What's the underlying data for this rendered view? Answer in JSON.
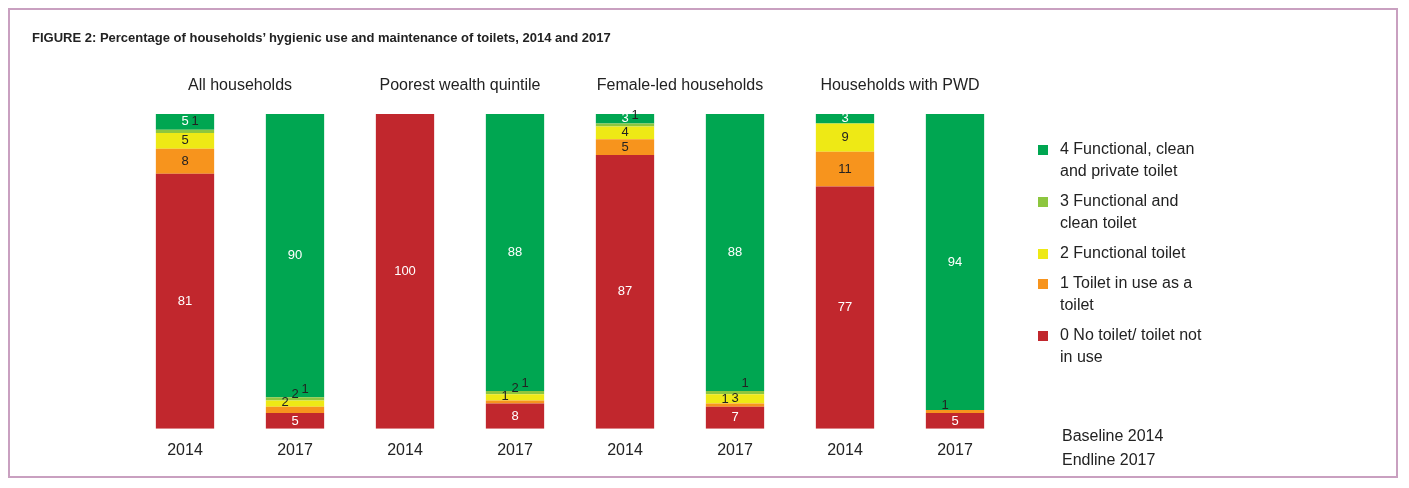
{
  "chart_data": [
    {
      "type": "bar",
      "title": "FIGURE 2: Percentage of households’ hygienic use and maintenance of toilets, 2014 and 2017",
      "subtitle": "All households",
      "categories": [
        "2014",
        "2017"
      ],
      "stacked": true,
      "ylim": [
        0,
        100
      ],
      "tick_labels": "x",
      "legend": false,
      "grid": false,
      "series": [
        {
          "color": "#c1272d",
          "values": [
            81,
            5
          ],
          "value_labels": [
            "81",
            "5"
          ]
        },
        {
          "color": "#f7941d",
          "values": [
            8,
            2
          ],
          "value_labels": [
            "8",
            "2"
          ]
        },
        {
          "color": "#eee915",
          "values": [
            5,
            2
          ],
          "value_labels": [
            "5",
            "2"
          ]
        },
        {
          "color": "#8dc63f",
          "values": [
            1,
            1
          ],
          "value_labels": [
            "1",
            "1"
          ]
        },
        {
          "color": "#00a651",
          "values": [
            5,
            90
          ],
          "value_labels": [
            "5",
            "90"
          ]
        }
      ]
    },
    {
      "type": "bar",
      "subtitle": "Poorest wealth quintile",
      "categories": [
        "2014",
        "2017"
      ],
      "stacked": true,
      "ylim": [
        0,
        100
      ],
      "tick_labels": "x",
      "legend": false,
      "grid": false,
      "series": [
        {
          "color": "#c1272d",
          "values": [
            100,
            8
          ],
          "value_labels": [
            "100",
            "8"
          ]
        },
        {
          "color": "#f7941d",
          "values": [
            0,
            1
          ],
          "value_labels": [
            null,
            "1"
          ]
        },
        {
          "color": "#eee915",
          "values": [
            0,
            2
          ],
          "value_labels": [
            null,
            "2"
          ]
        },
        {
          "color": "#8dc63f",
          "values": [
            0,
            1
          ],
          "value_labels": [
            null,
            "1"
          ]
        },
        {
          "color": "#00a651",
          "values": [
            0,
            88
          ],
          "value_labels": [
            null,
            "88"
          ]
        }
      ]
    },
    {
      "type": "bar",
      "subtitle": "Female-led households",
      "categories": [
        "2014",
        "2017"
      ],
      "stacked": true,
      "ylim": [
        0,
        100
      ],
      "tick_labels": "x",
      "legend": false,
      "grid": false,
      "series": [
        {
          "color": "#c1272d",
          "values": [
            87,
            7
          ],
          "value_labels": [
            "87",
            "7"
          ]
        },
        {
          "color": "#f7941d",
          "values": [
            5,
            1
          ],
          "value_labels": [
            "5",
            "1"
          ]
        },
        {
          "color": "#eee915",
          "values": [
            4,
            3
          ],
          "value_labels": [
            "4",
            "3"
          ]
        },
        {
          "color": "#8dc63f",
          "values": [
            1,
            1
          ],
          "value_labels": [
            "1",
            "1"
          ]
        },
        {
          "color": "#00a651",
          "values": [
            3,
            88
          ],
          "value_labels": [
            "3",
            "88"
          ]
        }
      ]
    },
    {
      "type": "bar",
      "subtitle": "Households with PWD",
      "categories": [
        "2014",
        "2017"
      ],
      "stacked": true,
      "ylim": [
        0,
        100
      ],
      "tick_labels": "x",
      "legend": "right",
      "grid": false,
      "annotations": [
        "Baseline 2014",
        "Endline 2017"
      ],
      "series": [
        {
          "name": "0 No toilet/ toilet not in use",
          "color": "#c1272d",
          "values": [
            77,
            5
          ],
          "value_labels": [
            "77",
            "5"
          ]
        },
        {
          "name": "1 Toilet in use as a toilet",
          "color": "#f7941d",
          "values": [
            11,
            1
          ],
          "value_labels": [
            "11",
            "1"
          ]
        },
        {
          "name": "2 Functional toilet",
          "color": "#eee915",
          "values": [
            9,
            0
          ],
          "value_labels": [
            "9",
            null
          ]
        },
        {
          "name": "3 Functional and clean toilet",
          "color": "#8dc63f",
          "values": [
            0,
            0
          ],
          "value_labels": [
            null,
            null
          ]
        },
        {
          "name": "4 Functional, clean and private toilet",
          "color": "#00a651",
          "values": [
            3,
            94
          ],
          "value_labels": [
            "3",
            "94"
          ]
        }
      ]
    }
  ]
}
